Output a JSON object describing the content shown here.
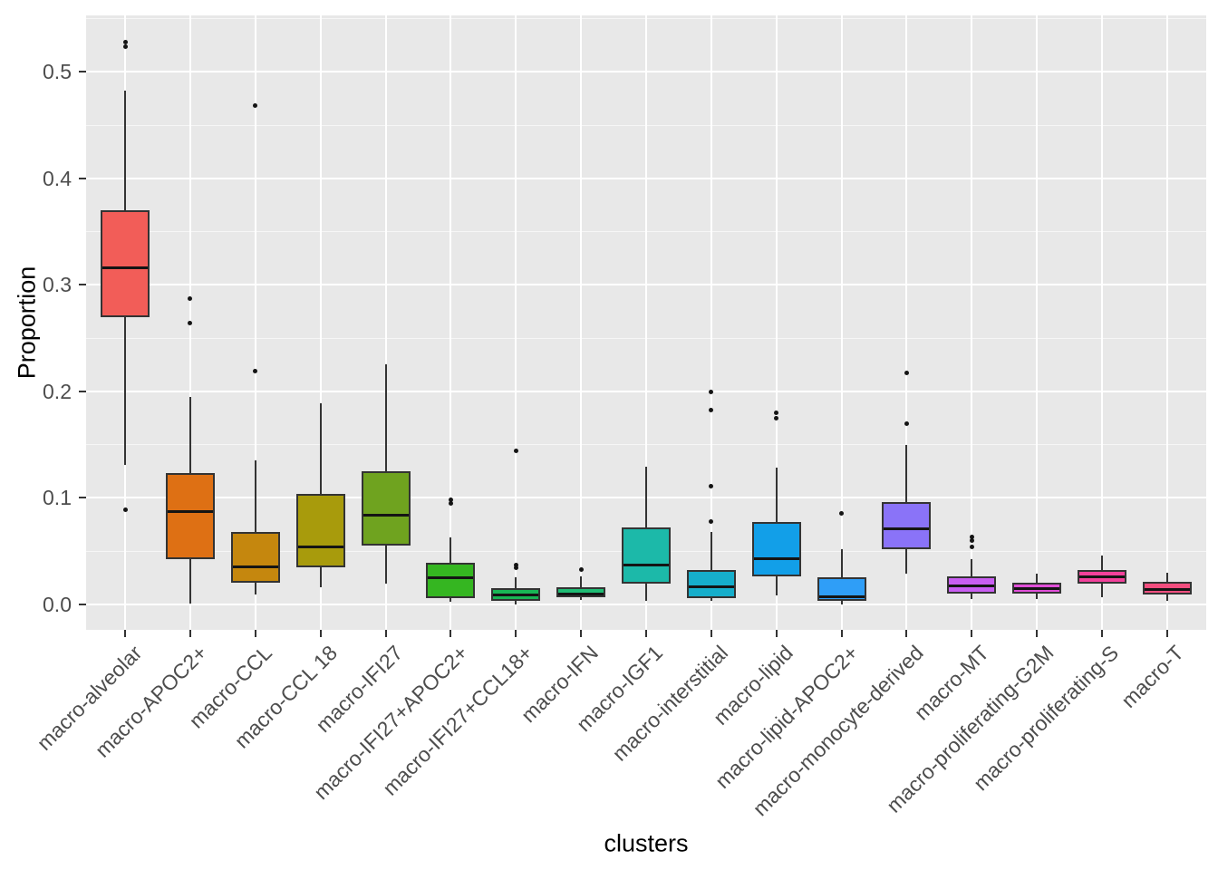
{
  "chart_data": {
    "type": "boxplot",
    "title": "",
    "xlabel": "clusters",
    "ylabel": "Proportion",
    "ylim": [
      -0.024,
      0.553
    ],
    "y_ticks": [
      "0.0",
      "0.1",
      "0.2",
      "0.3",
      "0.4",
      "0.5"
    ],
    "y_minor_ticks": [
      0.05,
      0.15,
      0.25,
      0.35,
      0.45,
      0.55
    ],
    "grid": "white major+minor horizontal lines and vertical line per category on grey panel",
    "legend_position": "none",
    "panel_bg": "#E8E8E8",
    "categories": [
      "macro-alveolar",
      "macro-APOC2+",
      "macro-CCL",
      "macro-CCL 18",
      "macro-IFI27",
      "macro-IFI27+APOC2+",
      "macro-IFI27+CCL18+",
      "macro-IFN",
      "macro-IGF1",
      "macro-interstitial",
      "macro-lipid",
      "macro-lipid-APOC2+",
      "macro-monocyte-derived",
      "macro-MT",
      "macro-proliferating-G2M",
      "macro-proliferating-S",
      "macro-T"
    ],
    "series": [
      {
        "name": "macro-alveolar",
        "color": "#F25D58",
        "whisker_low": 0.131,
        "q1": 0.27,
        "median": 0.316,
        "q3": 0.37,
        "whisker_high": 0.482,
        "outliers": [
          0.528,
          0.524,
          0.089
        ]
      },
      {
        "name": "macro-APOC2+",
        "color": "#DE7014",
        "whisker_low": 0.001,
        "q1": 0.042,
        "median": 0.087,
        "q3": 0.123,
        "whisker_high": 0.195,
        "outliers": [
          0.287,
          0.264
        ]
      },
      {
        "name": "macro-CCL",
        "color": "#C5870E",
        "whisker_low": 0.009,
        "q1": 0.02,
        "median": 0.035,
        "q3": 0.068,
        "whisker_high": 0.135,
        "outliers": [
          0.468,
          0.219
        ]
      },
      {
        "name": "macro-CCL 18",
        "color": "#A89B0C",
        "whisker_low": 0.016,
        "q1": 0.035,
        "median": 0.054,
        "q3": 0.104,
        "whisker_high": 0.189,
        "outliers": []
      },
      {
        "name": "macro-IFI27",
        "color": "#6FA31F",
        "whisker_low": 0.019,
        "q1": 0.055,
        "median": 0.084,
        "q3": 0.125,
        "whisker_high": 0.225,
        "outliers": []
      },
      {
        "name": "macro-IFI27+APOC2+",
        "color": "#35B621",
        "whisker_low": 0.002,
        "q1": 0.006,
        "median": 0.025,
        "q3": 0.039,
        "whisker_high": 0.063,
        "outliers": [
          0.098,
          0.095
        ]
      },
      {
        "name": "macro-IFI27+CCL18+",
        "color": "#19B655",
        "whisker_low": 0.0,
        "q1": 0.003,
        "median": 0.009,
        "q3": 0.015,
        "whisker_high": 0.025,
        "outliers": [
          0.144,
          0.037,
          0.034
        ]
      },
      {
        "name": "macro-IFN",
        "color": "#1FBC74",
        "whisker_low": 0.004,
        "q1": 0.007,
        "median": 0.01,
        "q3": 0.016,
        "whisker_high": 0.026,
        "outliers": [
          0.033
        ]
      },
      {
        "name": "macro-IGF1",
        "color": "#1CB9A9",
        "whisker_low": 0.003,
        "q1": 0.019,
        "median": 0.037,
        "q3": 0.072,
        "whisker_high": 0.129,
        "outliers": []
      },
      {
        "name": "macro-interstitial",
        "color": "#16AECB",
        "whisker_low": 0.003,
        "q1": 0.006,
        "median": 0.016,
        "q3": 0.032,
        "whisker_high": 0.068,
        "outliers": [
          0.199,
          0.182,
          0.111,
          0.078
        ]
      },
      {
        "name": "macro-lipid",
        "color": "#129FE8",
        "whisker_low": 0.008,
        "q1": 0.026,
        "median": 0.043,
        "q3": 0.077,
        "whisker_high": 0.128,
        "outliers": [
          0.18,
          0.175
        ]
      },
      {
        "name": "macro-lipid-APOC2+",
        "color": "#2F9EF7",
        "whisker_low": 0.0,
        "q1": 0.003,
        "median": 0.007,
        "q3": 0.025,
        "whisker_high": 0.052,
        "outliers": [
          0.085
        ]
      },
      {
        "name": "macro-monocyte-derived",
        "color": "#8A73F8",
        "whisker_low": 0.029,
        "q1": 0.052,
        "median": 0.071,
        "q3": 0.096,
        "whisker_high": 0.15,
        "outliers": [
          0.217,
          0.17
        ]
      },
      {
        "name": "macro-MT",
        "color": "#C95EF2",
        "whisker_low": 0.005,
        "q1": 0.01,
        "median": 0.017,
        "q3": 0.026,
        "whisker_high": 0.042,
        "outliers": [
          0.063,
          0.06,
          0.054
        ]
      },
      {
        "name": "macro-proliferating-G2M",
        "color": "#E14FD8",
        "whisker_low": 0.005,
        "q1": 0.01,
        "median": 0.015,
        "q3": 0.02,
        "whisker_high": 0.029,
        "outliers": []
      },
      {
        "name": "macro-proliferating-S",
        "color": "#F2419B",
        "whisker_low": 0.007,
        "q1": 0.019,
        "median": 0.026,
        "q3": 0.032,
        "whisker_high": 0.046,
        "outliers": []
      },
      {
        "name": "macro-T",
        "color": "#F34E7F",
        "whisker_low": 0.003,
        "q1": 0.009,
        "median": 0.014,
        "q3": 0.021,
        "whisker_high": 0.03,
        "outliers": []
      }
    ]
  }
}
